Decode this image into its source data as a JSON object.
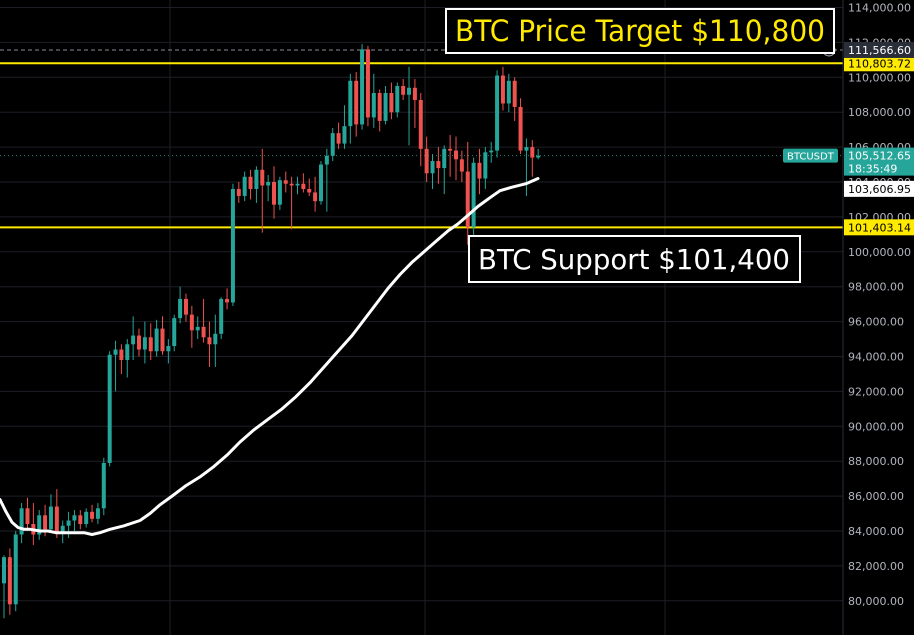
{
  "colors": {
    "background": "#000000",
    "grid": "#1c1f26",
    "candle_up": "#26a69a",
    "candle_down": "#ef5350",
    "moving_average": "#ffffff",
    "level_line": "#ffea00",
    "current_price": "#26a69a"
  },
  "chart_data": {
    "type": "candlestick",
    "symbol": "BTCUSDT",
    "ylim": [
      79000,
      114000
    ],
    "y_ticks": [
      "114,000.00",
      "112,000.00",
      "110,000.00",
      "108,000.00",
      "106,000.00",
      "104,000.00",
      "102,000.00",
      "100,000.00",
      "98,000.00",
      "96,000.00",
      "94,000.00",
      "92,000.00",
      "90,000.00",
      "88,000.00",
      "86,000.00",
      "84,000.00",
      "82,000.00",
      "80,000.00"
    ],
    "y_tick_values": [
      114000,
      112000,
      110000,
      108000,
      106000,
      104000,
      102000,
      100000,
      98000,
      96000,
      94000,
      92000,
      90000,
      88000,
      86000,
      84000,
      82000,
      80000
    ],
    "candles": [
      {
        "o": 81000,
        "h": 82600,
        "l": 79000,
        "c": 82500
      },
      {
        "o": 82500,
        "h": 83000,
        "l": 79200,
        "c": 79800
      },
      {
        "o": 79800,
        "h": 84000,
        "l": 79400,
        "c": 83800
      },
      {
        "o": 83800,
        "h": 85600,
        "l": 83300,
        "c": 85300
      },
      {
        "o": 85300,
        "h": 85900,
        "l": 84000,
        "c": 84400
      },
      {
        "o": 84400,
        "h": 85600,
        "l": 83200,
        "c": 83800
      },
      {
        "o": 83800,
        "h": 85200,
        "l": 83500,
        "c": 84900
      },
      {
        "o": 84900,
        "h": 85500,
        "l": 83700,
        "c": 84100
      },
      {
        "o": 84100,
        "h": 86100,
        "l": 83900,
        "c": 85400
      },
      {
        "o": 85400,
        "h": 86400,
        "l": 83600,
        "c": 83900
      },
      {
        "o": 83900,
        "h": 84600,
        "l": 83300,
        "c": 84300
      },
      {
        "o": 84300,
        "h": 85100,
        "l": 83600,
        "c": 84600
      },
      {
        "o": 84600,
        "h": 85200,
        "l": 84000,
        "c": 84900
      },
      {
        "o": 84900,
        "h": 85200,
        "l": 84100,
        "c": 84400
      },
      {
        "o": 84400,
        "h": 85300,
        "l": 84200,
        "c": 85100
      },
      {
        "o": 85100,
        "h": 85500,
        "l": 84500,
        "c": 84700
      },
      {
        "o": 84700,
        "h": 85600,
        "l": 84400,
        "c": 85300
      },
      {
        "o": 85300,
        "h": 88200,
        "l": 84900,
        "c": 87900
      },
      {
        "o": 87900,
        "h": 94300,
        "l": 87700,
        "c": 94100
      },
      {
        "o": 94100,
        "h": 94900,
        "l": 92000,
        "c": 94400
      },
      {
        "o": 94400,
        "h": 94700,
        "l": 93000,
        "c": 93800
      },
      {
        "o": 93800,
        "h": 95000,
        "l": 92800,
        "c": 94700
      },
      {
        "o": 94700,
        "h": 96300,
        "l": 93800,
        "c": 95200
      },
      {
        "o": 95200,
        "h": 95600,
        "l": 94000,
        "c": 94400
      },
      {
        "o": 94400,
        "h": 96000,
        "l": 93600,
        "c": 95100
      },
      {
        "o": 95100,
        "h": 95900,
        "l": 93800,
        "c": 94300
      },
      {
        "o": 94300,
        "h": 96100,
        "l": 94000,
        "c": 95600
      },
      {
        "o": 95600,
        "h": 96300,
        "l": 94100,
        "c": 94300
      },
      {
        "o": 94300,
        "h": 95000,
        "l": 93600,
        "c": 94600
      },
      {
        "o": 94600,
        "h": 96400,
        "l": 94300,
        "c": 96200
      },
      {
        "o": 96200,
        "h": 98000,
        "l": 95900,
        "c": 97300
      },
      {
        "o": 97300,
        "h": 97600,
        "l": 96000,
        "c": 96400
      },
      {
        "o": 96400,
        "h": 96900,
        "l": 94500,
        "c": 95500
      },
      {
        "o": 95500,
        "h": 96300,
        "l": 95000,
        "c": 95700
      },
      {
        "o": 95700,
        "h": 97300,
        "l": 94800,
        "c": 95100
      },
      {
        "o": 95100,
        "h": 96000,
        "l": 93400,
        "c": 94700
      },
      {
        "o": 94700,
        "h": 96400,
        "l": 93400,
        "c": 95300
      },
      {
        "o": 95300,
        "h": 97400,
        "l": 95000,
        "c": 97300
      },
      {
        "o": 97300,
        "h": 97900,
        "l": 96700,
        "c": 97100
      },
      {
        "o": 97100,
        "h": 103900,
        "l": 96900,
        "c": 103600
      },
      {
        "o": 103600,
        "h": 104000,
        "l": 102800,
        "c": 103200
      },
      {
        "o": 103200,
        "h": 104600,
        "l": 102900,
        "c": 104300
      },
      {
        "o": 104300,
        "h": 104700,
        "l": 103000,
        "c": 103600
      },
      {
        "o": 103600,
        "h": 104900,
        "l": 102800,
        "c": 104700
      },
      {
        "o": 104700,
        "h": 105900,
        "l": 101100,
        "c": 103800
      },
      {
        "o": 103800,
        "h": 104400,
        "l": 102900,
        "c": 104000
      },
      {
        "o": 104000,
        "h": 104900,
        "l": 101900,
        "c": 102700
      },
      {
        "o": 102700,
        "h": 104300,
        "l": 102400,
        "c": 104100
      },
      {
        "o": 104100,
        "h": 104600,
        "l": 103400,
        "c": 103900
      },
      {
        "o": 103900,
        "h": 104300,
        "l": 101300,
        "c": 103800
      },
      {
        "o": 103800,
        "h": 104300,
        "l": 103300,
        "c": 103900
      },
      {
        "o": 103900,
        "h": 104500,
        "l": 103400,
        "c": 103600
      },
      {
        "o": 103600,
        "h": 104200,
        "l": 103200,
        "c": 103400
      },
      {
        "o": 103400,
        "h": 104300,
        "l": 102300,
        "c": 102900
      },
      {
        "o": 102900,
        "h": 105200,
        "l": 102700,
        "c": 105000
      },
      {
        "o": 105000,
        "h": 105900,
        "l": 102300,
        "c": 105500
      },
      {
        "o": 105500,
        "h": 107100,
        "l": 105200,
        "c": 106800
      },
      {
        "o": 106800,
        "h": 107400,
        "l": 105900,
        "c": 106200
      },
      {
        "o": 106200,
        "h": 108400,
        "l": 105900,
        "c": 107200
      },
      {
        "o": 107200,
        "h": 110200,
        "l": 106200,
        "c": 109800
      },
      {
        "o": 109800,
        "h": 110300,
        "l": 106600,
        "c": 107300
      },
      {
        "o": 107300,
        "h": 111900,
        "l": 107000,
        "c": 111600
      },
      {
        "o": 111600,
        "h": 111800,
        "l": 107200,
        "c": 107700
      },
      {
        "o": 107700,
        "h": 110200,
        "l": 107100,
        "c": 109100
      },
      {
        "o": 109100,
        "h": 109300,
        "l": 106900,
        "c": 107500
      },
      {
        "o": 107500,
        "h": 109500,
        "l": 107300,
        "c": 109100
      },
      {
        "o": 109100,
        "h": 109700,
        "l": 107600,
        "c": 108000
      },
      {
        "o": 108000,
        "h": 109700,
        "l": 107700,
        "c": 109500
      },
      {
        "o": 109500,
        "h": 109900,
        "l": 108700,
        "c": 109000
      },
      {
        "o": 109000,
        "h": 110600,
        "l": 106100,
        "c": 109400
      },
      {
        "o": 109400,
        "h": 109900,
        "l": 107100,
        "c": 108700
      },
      {
        "o": 108700,
        "h": 109100,
        "l": 104900,
        "c": 105900
      },
      {
        "o": 105900,
        "h": 106600,
        "l": 104000,
        "c": 104500
      },
      {
        "o": 104500,
        "h": 105600,
        "l": 103600,
        "c": 105200
      },
      {
        "o": 105200,
        "h": 106000,
        "l": 103900,
        "c": 104800
      },
      {
        "o": 104800,
        "h": 106100,
        "l": 103300,
        "c": 105900
      },
      {
        "o": 105900,
        "h": 106700,
        "l": 104300,
        "c": 105800
      },
      {
        "o": 105800,
        "h": 106600,
        "l": 104100,
        "c": 105300
      },
      {
        "o": 105300,
        "h": 105800,
        "l": 104000,
        "c": 104600
      },
      {
        "o": 104600,
        "h": 106300,
        "l": 100400,
        "c": 101400
      },
      {
        "o": 101400,
        "h": 105400,
        "l": 100800,
        "c": 105100
      },
      {
        "o": 105100,
        "h": 105900,
        "l": 103300,
        "c": 104200
      },
      {
        "o": 104200,
        "h": 106000,
        "l": 103600,
        "c": 105700
      },
      {
        "o": 105700,
        "h": 106300,
        "l": 105100,
        "c": 105800
      },
      {
        "o": 105800,
        "h": 110400,
        "l": 105400,
        "c": 110100
      },
      {
        "o": 110100,
        "h": 110600,
        "l": 108100,
        "c": 108500
      },
      {
        "o": 108500,
        "h": 110200,
        "l": 108000,
        "c": 109800
      },
      {
        "o": 109800,
        "h": 110000,
        "l": 107500,
        "c": 108300
      },
      {
        "o": 108300,
        "h": 108800,
        "l": 105600,
        "c": 105800
      },
      {
        "o": 105800,
        "h": 106500,
        "l": 103200,
        "c": 106000
      },
      {
        "o": 106000,
        "h": 106400,
        "l": 104300,
        "c": 105400
      },
      {
        "o": 105400,
        "h": 105900,
        "l": 105300,
        "c": 105513
      }
    ],
    "moving_average": [
      [
        0,
        85800
      ],
      [
        6,
        85100
      ],
      [
        12,
        84500
      ],
      [
        18,
        84200
      ],
      [
        24,
        84100
      ],
      [
        30,
        84100
      ],
      [
        40,
        84000
      ],
      [
        48,
        84000
      ],
      [
        56,
        83900
      ],
      [
        64,
        83900
      ],
      [
        72,
        83900
      ],
      [
        84,
        83900
      ],
      [
        92,
        83800
      ],
      [
        100,
        83900
      ],
      [
        110,
        84100
      ],
      [
        124,
        84300
      ],
      [
        140,
        84600
      ],
      [
        150,
        85000
      ],
      [
        160,
        85500
      ],
      [
        172,
        86000
      ],
      [
        186,
        86600
      ],
      [
        200,
        87100
      ],
      [
        214,
        87700
      ],
      [
        228,
        88400
      ],
      [
        240,
        89100
      ],
      [
        254,
        89800
      ],
      [
        268,
        90400
      ],
      [
        282,
        91000
      ],
      [
        296,
        91700
      ],
      [
        310,
        92500
      ],
      [
        324,
        93400
      ],
      [
        338,
        94300
      ],
      [
        352,
        95200
      ],
      [
        364,
        96100
      ],
      [
        376,
        97000
      ],
      [
        388,
        97900
      ],
      [
        400,
        98700
      ],
      [
        412,
        99400
      ],
      [
        424,
        100000
      ],
      [
        436,
        100600
      ],
      [
        448,
        101200
      ],
      [
        458,
        101600
      ],
      [
        468,
        102100
      ],
      [
        478,
        102600
      ],
      [
        490,
        103100
      ],
      [
        500,
        103500
      ],
      [
        512,
        103700
      ],
      [
        526,
        103900
      ],
      [
        538,
        104200
      ]
    ],
    "horizontal_levels": [
      {
        "price": 110803.72,
        "label": "110,803.72"
      },
      {
        "price": 101403.14,
        "label": "101,403.14"
      }
    ],
    "dashed_level": {
      "price": 111566.6,
      "label": "111,566.60"
    },
    "price_labels": [
      {
        "price": 103606.95,
        "label": "103,606.95"
      }
    ],
    "current_price": {
      "price": 105512.65,
      "label": "105,512.65",
      "symbol": "BTCUSDT",
      "countdown": "18:35:49"
    },
    "annotations": [
      {
        "text": "BTC Price Target $110,800",
        "color": "#ffea00"
      },
      {
        "text": "BTC Support $101,400",
        "color": "#ffffff"
      }
    ]
  }
}
